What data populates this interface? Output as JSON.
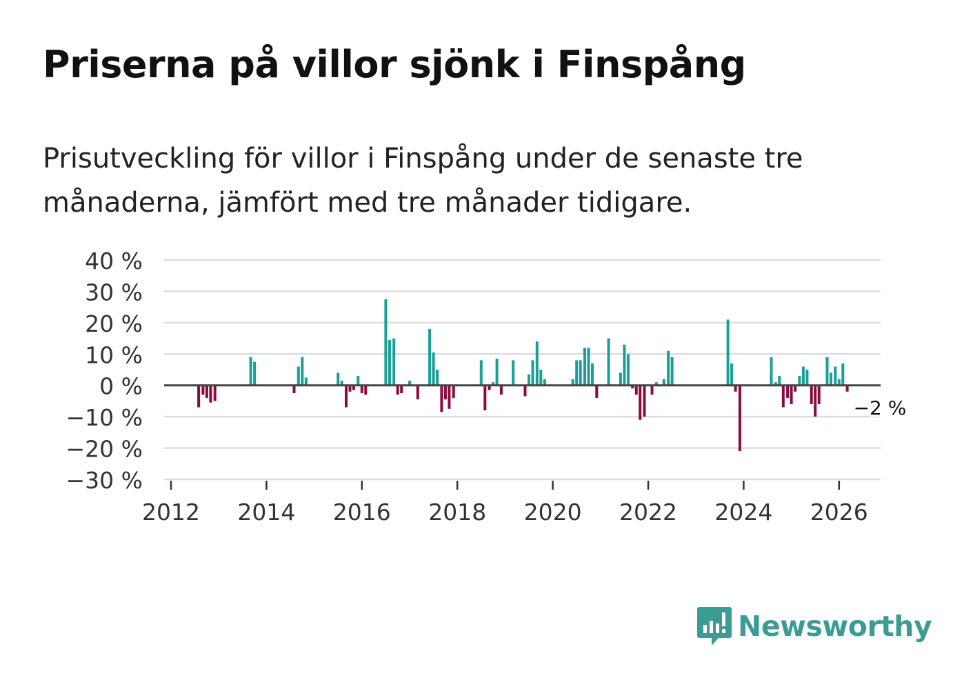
{
  "title": "Priserna på villor sjönk i Finspång",
  "subtitle": "Prisutveckling för villor i Finspång under de senaste tre månaderna, jämfört med tre månader tidigare.",
  "brand": {
    "name": "Newsworthy",
    "color": "#3a9c95",
    "icon": "newsworthy-chat-bar-icon"
  },
  "colors": {
    "positive": "#1a9e96",
    "negative": "#8c0a3e",
    "grid": "#dddddd",
    "zero": "#444444"
  },
  "chart_data": {
    "type": "bar",
    "ylim": [
      -30,
      40
    ],
    "yticks": [
      40,
      30,
      20,
      10,
      0,
      -10,
      -20,
      -30
    ],
    "ytick_labels": [
      "40 %",
      "30 %",
      "20 %",
      "10 %",
      "0 %",
      "−10 %",
      "−20 %",
      "−30 %"
    ],
    "xticks": [
      2012,
      2014,
      2016,
      2018,
      2020,
      2022,
      2024,
      2026
    ],
    "xtick_labels": [
      "2012",
      "2014",
      "2016",
      "2018",
      "2020",
      "2022",
      "2024",
      "2026"
    ],
    "annotation": {
      "text": "−2 %",
      "x": 2026.17,
      "value": -2
    },
    "series": [
      {
        "x": 2012.58,
        "value": -7
      },
      {
        "x": 2012.67,
        "value": -3
      },
      {
        "x": 2012.75,
        "value": -4
      },
      {
        "x": 2012.83,
        "value": -5.5
      },
      {
        "x": 2012.92,
        "value": -5
      },
      {
        "x": 2013.67,
        "value": 9
      },
      {
        "x": 2013.75,
        "value": 7.5
      },
      {
        "x": 2014.58,
        "value": -2.5
      },
      {
        "x": 2014.67,
        "value": 6
      },
      {
        "x": 2014.75,
        "value": 9
      },
      {
        "x": 2014.83,
        "value": 2.5
      },
      {
        "x": 2015.5,
        "value": 4
      },
      {
        "x": 2015.58,
        "value": 1.5
      },
      {
        "x": 2015.67,
        "value": -7
      },
      {
        "x": 2015.75,
        "value": -2
      },
      {
        "x": 2015.83,
        "value": -1.5
      },
      {
        "x": 2015.92,
        "value": 3
      },
      {
        "x": 2016.0,
        "value": -2.5
      },
      {
        "x": 2016.08,
        "value": -3
      },
      {
        "x": 2016.5,
        "value": 27.5
      },
      {
        "x": 2016.58,
        "value": 14.5
      },
      {
        "x": 2016.67,
        "value": 15
      },
      {
        "x": 2016.75,
        "value": -3
      },
      {
        "x": 2016.83,
        "value": -2.5
      },
      {
        "x": 2017.0,
        "value": 1.5
      },
      {
        "x": 2017.17,
        "value": -4.5
      },
      {
        "x": 2017.42,
        "value": 18
      },
      {
        "x": 2017.5,
        "value": 10.5
      },
      {
        "x": 2017.58,
        "value": 5
      },
      {
        "x": 2017.67,
        "value": -8.5
      },
      {
        "x": 2017.75,
        "value": -4.5
      },
      {
        "x": 2017.83,
        "value": -7.5
      },
      {
        "x": 2017.92,
        "value": -4
      },
      {
        "x": 2018.5,
        "value": 8
      },
      {
        "x": 2018.58,
        "value": -8
      },
      {
        "x": 2018.67,
        "value": -1.5
      },
      {
        "x": 2018.75,
        "value": 1
      },
      {
        "x": 2018.83,
        "value": 8.5
      },
      {
        "x": 2018.92,
        "value": -3
      },
      {
        "x": 2019.17,
        "value": 8
      },
      {
        "x": 2019.42,
        "value": -3.5
      },
      {
        "x": 2019.5,
        "value": 3.5
      },
      {
        "x": 2019.58,
        "value": 8
      },
      {
        "x": 2019.67,
        "value": 14
      },
      {
        "x": 2019.75,
        "value": 5
      },
      {
        "x": 2019.83,
        "value": 2
      },
      {
        "x": 2020.42,
        "value": 2
      },
      {
        "x": 2020.5,
        "value": 8
      },
      {
        "x": 2020.58,
        "value": 8
      },
      {
        "x": 2020.67,
        "value": 12
      },
      {
        "x": 2020.75,
        "value": 12
      },
      {
        "x": 2020.83,
        "value": 7
      },
      {
        "x": 2020.92,
        "value": -4
      },
      {
        "x": 2021.17,
        "value": 15
      },
      {
        "x": 2021.42,
        "value": 4
      },
      {
        "x": 2021.5,
        "value": 13
      },
      {
        "x": 2021.58,
        "value": 10
      },
      {
        "x": 2021.67,
        "value": -1
      },
      {
        "x": 2021.75,
        "value": -3
      },
      {
        "x": 2021.83,
        "value": -11
      },
      {
        "x": 2021.92,
        "value": -10
      },
      {
        "x": 2022.08,
        "value": -3
      },
      {
        "x": 2022.17,
        "value": 1
      },
      {
        "x": 2022.33,
        "value": 2
      },
      {
        "x": 2022.42,
        "value": 11
      },
      {
        "x": 2022.5,
        "value": 9
      },
      {
        "x": 2023.67,
        "value": 21
      },
      {
        "x": 2023.75,
        "value": 7
      },
      {
        "x": 2023.83,
        "value": -2
      },
      {
        "x": 2023.92,
        "value": -21
      },
      {
        "x": 2024.58,
        "value": 9
      },
      {
        "x": 2024.67,
        "value": 1
      },
      {
        "x": 2024.75,
        "value": 3
      },
      {
        "x": 2024.83,
        "value": -7
      },
      {
        "x": 2024.92,
        "value": -4
      },
      {
        "x": 2025.0,
        "value": -6
      },
      {
        "x": 2025.08,
        "value": -2
      },
      {
        "x": 2025.17,
        "value": 3
      },
      {
        "x": 2025.25,
        "value": 6
      },
      {
        "x": 2025.33,
        "value": 5
      },
      {
        "x": 2025.42,
        "value": -6
      },
      {
        "x": 2025.5,
        "value": -10
      },
      {
        "x": 2025.58,
        "value": -6
      },
      {
        "x": 2025.75,
        "value": 9
      },
      {
        "x": 2025.83,
        "value": 4
      },
      {
        "x": 2025.92,
        "value": 6
      },
      {
        "x": 2026.0,
        "value": 2
      },
      {
        "x": 2026.08,
        "value": 7
      },
      {
        "x": 2026.17,
        "value": -2
      }
    ]
  }
}
